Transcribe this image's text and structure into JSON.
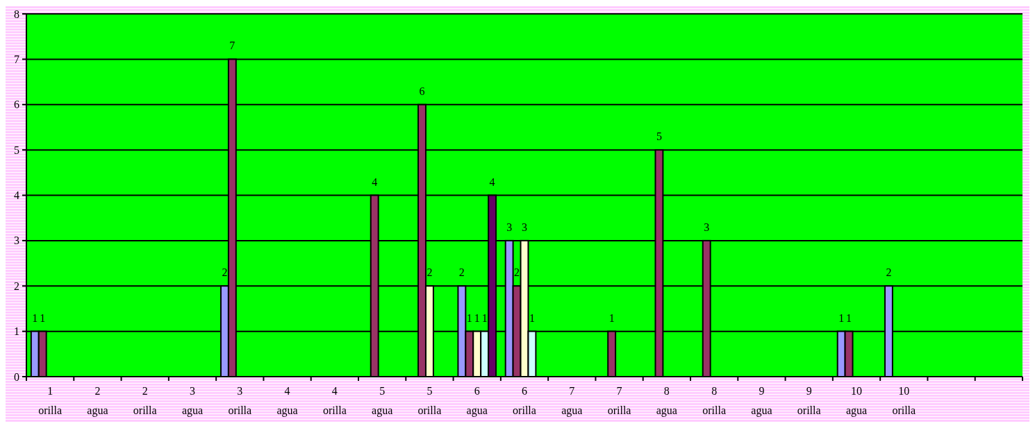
{
  "chart_data": {
    "type": "bar",
    "categories": [
      "1 orilla",
      "2 agua",
      "2 orilla",
      "3 agua",
      "3 orilla",
      "4 agua",
      "4 orilla",
      "5 agua",
      "5 orilla",
      "6 agua",
      "6 orilla",
      "7 agua",
      "7 orilla",
      "8 agua",
      "8 orilla",
      "9 agua",
      "9 orilla",
      "10 agua",
      "10 orilla",
      null,
      null
    ],
    "series": [
      {
        "color": "#9999ff",
        "values": [
          1,
          null,
          null,
          null,
          2,
          null,
          null,
          null,
          null,
          2,
          3,
          null,
          null,
          null,
          null,
          null,
          null,
          1,
          2,
          null,
          null
        ]
      },
      {
        "color": "#993366",
        "values": [
          1,
          null,
          null,
          null,
          7,
          null,
          null,
          4,
          6,
          1,
          2,
          null,
          1,
          5,
          3,
          null,
          null,
          1,
          null,
          null,
          null
        ]
      },
      {
        "color": "#ffffcc",
        "values": [
          null,
          null,
          null,
          null,
          null,
          null,
          null,
          null,
          2,
          1,
          3,
          null,
          null,
          null,
          null,
          null,
          null,
          null,
          null,
          null,
          null
        ]
      },
      {
        "color": "#ccffff",
        "values": [
          null,
          null,
          null,
          null,
          null,
          null,
          null,
          null,
          null,
          1,
          1,
          null,
          null,
          null,
          null,
          null,
          null,
          null,
          null,
          null,
          null
        ]
      },
      {
        "color": "#660066",
        "values": [
          null,
          null,
          null,
          null,
          null,
          null,
          null,
          null,
          null,
          4,
          null,
          null,
          null,
          null,
          null,
          null,
          null,
          null,
          null,
          null,
          null
        ]
      }
    ],
    "ylim": [
      0,
      8
    ],
    "yticks": [
      0,
      1,
      2,
      3,
      4,
      5,
      6,
      7,
      8
    ],
    "grid": "y",
    "data_labels": true
  }
}
